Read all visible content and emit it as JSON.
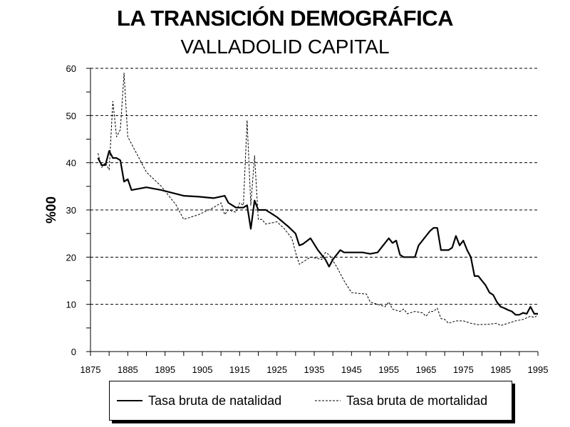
{
  "chart_data": {
    "type": "line",
    "title": "LA TRANSICIÓN DEMOGRÁFICA",
    "subtitle": "VALLADOLID CAPITAL",
    "xlabel": "",
    "ylabel": "%00",
    "xlim": [
      1875,
      1995
    ],
    "ylim": [
      0,
      60
    ],
    "xticks": [
      1875,
      1885,
      1895,
      1905,
      1915,
      1925,
      1935,
      1945,
      1955,
      1965,
      1975,
      1985,
      1995
    ],
    "yticks": [
      0,
      10,
      20,
      30,
      40,
      50,
      60
    ],
    "grid": "horizontal-dashed",
    "legend_position": "bottom",
    "series": [
      {
        "name": "Tasa bruta de natalidad",
        "style": "solid",
        "color": "#000000",
        "points": [
          [
            1877,
            41
          ],
          [
            1878,
            39.5
          ],
          [
            1879,
            39.5
          ],
          [
            1880,
            42.5
          ],
          [
            1881,
            41
          ],
          [
            1882,
            41
          ],
          [
            1883,
            40.5
          ],
          [
            1884,
            36
          ],
          [
            1885,
            36.5
          ],
          [
            1886,
            34.2
          ],
          [
            1890,
            34.8
          ],
          [
            1894,
            34.2
          ],
          [
            1900,
            33
          ],
          [
            1904,
            32.8
          ],
          [
            1908,
            32.5
          ],
          [
            1911,
            33
          ],
          [
            1912,
            31.5
          ],
          [
            1914,
            30.5
          ],
          [
            1916,
            30.5
          ],
          [
            1917,
            31
          ],
          [
            1918,
            26
          ],
          [
            1919,
            32
          ],
          [
            1920,
            30
          ],
          [
            1922,
            30
          ],
          [
            1925,
            28.5
          ],
          [
            1928,
            26.5
          ],
          [
            1930,
            25
          ],
          [
            1931,
            22.5
          ],
          [
            1932,
            22.8
          ],
          [
            1934,
            24
          ],
          [
            1936,
            21.5
          ],
          [
            1938,
            19.5
          ],
          [
            1939,
            18
          ],
          [
            1940,
            19.5
          ],
          [
            1942,
            21.5
          ],
          [
            1943,
            21
          ],
          [
            1944,
            21
          ],
          [
            1946,
            21
          ],
          [
            1948,
            21
          ],
          [
            1950,
            20.7
          ],
          [
            1952,
            21
          ],
          [
            1954,
            23
          ],
          [
            1955,
            24
          ],
          [
            1956,
            23
          ],
          [
            1957,
            23.5
          ],
          [
            1958,
            20.5
          ],
          [
            1959,
            20
          ],
          [
            1962,
            20
          ],
          [
            1963,
            22.5
          ],
          [
            1965,
            24.5
          ],
          [
            1966,
            25.5
          ],
          [
            1967,
            26.2
          ],
          [
            1968,
            26.2
          ],
          [
            1969,
            21.5
          ],
          [
            1971,
            21.5
          ],
          [
            1972,
            22
          ],
          [
            1973,
            24.5
          ],
          [
            1974,
            22.5
          ],
          [
            1975,
            23.5
          ],
          [
            1976,
            21.5
          ],
          [
            1977,
            20
          ],
          [
            1978,
            16
          ],
          [
            1979,
            16
          ],
          [
            1980,
            15
          ],
          [
            1981,
            14
          ],
          [
            1982,
            12.5
          ],
          [
            1983,
            12
          ],
          [
            1984,
            10.5
          ],
          [
            1985,
            9.5
          ],
          [
            1986,
            9.2
          ],
          [
            1987,
            8.8
          ],
          [
            1988,
            8.5
          ],
          [
            1989,
            7.8
          ],
          [
            1990,
            7.8
          ],
          [
            1991,
            8.2
          ],
          [
            1992,
            8
          ],
          [
            1993,
            9.5
          ],
          [
            1994,
            8
          ],
          [
            1995,
            8
          ]
        ]
      },
      {
        "name": "Tasa bruta de mortalidad",
        "style": "dashed",
        "color": "#000000",
        "points": [
          [
            1877,
            42
          ],
          [
            1878,
            39
          ],
          [
            1879,
            40
          ],
          [
            1880,
            38.5
          ],
          [
            1881,
            53
          ],
          [
            1882,
            45.5
          ],
          [
            1883,
            47
          ],
          [
            1884,
            59
          ],
          [
            1885,
            45.5
          ],
          [
            1886,
            44
          ],
          [
            1890,
            38
          ],
          [
            1894,
            35
          ],
          [
            1898,
            31
          ],
          [
            1900,
            28
          ],
          [
            1904,
            29
          ],
          [
            1908,
            30.5
          ],
          [
            1910,
            31.5
          ],
          [
            1911,
            29
          ],
          [
            1912,
            30
          ],
          [
            1914,
            29.5
          ],
          [
            1915,
            31.5
          ],
          [
            1916,
            31
          ],
          [
            1917,
            49
          ],
          [
            1918,
            31
          ],
          [
            1919,
            41.5
          ],
          [
            1920,
            28
          ],
          [
            1921,
            28
          ],
          [
            1922,
            27
          ],
          [
            1925,
            27.5
          ],
          [
            1927,
            26
          ],
          [
            1929,
            24
          ],
          [
            1930,
            21
          ],
          [
            1931,
            18.5
          ],
          [
            1932,
            19
          ],
          [
            1934,
            20
          ],
          [
            1937,
            19.5
          ],
          [
            1938,
            21
          ],
          [
            1939,
            20.5
          ],
          [
            1941,
            18
          ],
          [
            1943,
            15
          ],
          [
            1945,
            12.5
          ],
          [
            1947,
            12.3
          ],
          [
            1949,
            12.2
          ],
          [
            1950,
            10.5
          ],
          [
            1952,
            10
          ],
          [
            1954,
            9.5
          ],
          [
            1955,
            10.5
          ],
          [
            1956,
            9
          ],
          [
            1958,
            8.5
          ],
          [
            1959,
            9
          ],
          [
            1960,
            8
          ],
          [
            1962,
            8.5
          ],
          [
            1964,
            8.2
          ],
          [
            1965,
            7.5
          ],
          [
            1966,
            8.5
          ],
          [
            1967,
            8.5
          ],
          [
            1968,
            9.2
          ],
          [
            1969,
            7
          ],
          [
            1970,
            6.8
          ],
          [
            1971,
            6
          ],
          [
            1973,
            6.5
          ],
          [
            1975,
            6.5
          ],
          [
            1977,
            6
          ],
          [
            1979,
            5.7
          ],
          [
            1982,
            5.8
          ],
          [
            1984,
            6
          ],
          [
            1985,
            5.5
          ],
          [
            1987,
            6
          ],
          [
            1989,
            6.5
          ],
          [
            1991,
            6.8
          ],
          [
            1993,
            7.5
          ],
          [
            1994,
            7.2
          ],
          [
            1995,
            7.8
          ]
        ]
      }
    ]
  }
}
